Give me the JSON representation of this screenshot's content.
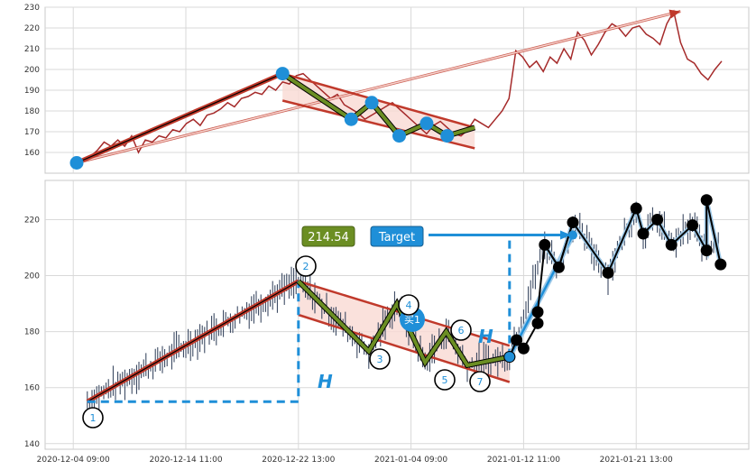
{
  "colors": {
    "price_line": "#a52a2a",
    "trend_red": "#c0392b",
    "zigzag_green": "#6b8e23",
    "marker_blue": "#1f8fd8",
    "channel_fill": "#f9d9d3",
    "candle": "#2b3a55",
    "black": "#000000",
    "grid": "#d9d9d9"
  },
  "chart_data": [
    {
      "type": "line",
      "name": "top-panel",
      "ylim": [
        150,
        230
      ],
      "yticks": [
        "160",
        "170",
        "180",
        "190",
        "200",
        "210",
        "220",
        "230"
      ],
      "xlim": [
        0,
        100
      ],
      "x": [
        0,
        1,
        2,
        3,
        4,
        5,
        6,
        7,
        8,
        9,
        10,
        11,
        12,
        13,
        14,
        15,
        16,
        17,
        18,
        19,
        20,
        21,
        22,
        23,
        24,
        25,
        26,
        27,
        28,
        29,
        30,
        31,
        32,
        33,
        34,
        35,
        36,
        37,
        38,
        39,
        40,
        41,
        42,
        43,
        44,
        45,
        46,
        47,
        48,
        49,
        50,
        51,
        52,
        53,
        54,
        55,
        56,
        57,
        58,
        59,
        60,
        61,
        62,
        63,
        64,
        65,
        66,
        67,
        68,
        69,
        70,
        71,
        72,
        73,
        74,
        75,
        76,
        77,
        78,
        79,
        80,
        81,
        82,
        83,
        84,
        85,
        86,
        87,
        88,
        89,
        90,
        91,
        92,
        93,
        94
      ],
      "values": [
        155,
        157,
        158,
        161,
        165,
        163,
        166,
        163,
        168,
        160,
        166,
        165,
        168,
        167,
        171,
        170,
        174,
        176,
        173,
        178,
        179,
        181,
        184,
        182,
        186,
        187,
        189,
        188,
        192,
        190,
        194,
        193,
        197,
        198,
        195,
        192,
        189,
        186,
        188,
        183,
        181,
        179,
        176,
        178,
        180,
        182,
        184,
        181,
        178,
        175,
        172,
        169,
        173,
        175,
        172,
        169,
        168,
        171,
        176,
        174,
        172,
        176,
        180,
        186,
        209,
        206,
        201,
        204,
        199,
        206,
        203,
        210,
        205,
        218,
        214,
        207,
        212,
        218,
        222,
        220,
        216,
        220,
        221,
        217,
        215,
        212,
        222,
        228,
        213,
        205,
        203,
        198,
        195,
        200,
        204
      ],
      "zigzag_points": [
        [
          0,
          155
        ],
        [
          30,
          198
        ],
        [
          40,
          176
        ],
        [
          43,
          184
        ],
        [
          47,
          168
        ],
        [
          51,
          174
        ],
        [
          54,
          168
        ],
        [
          58,
          172
        ]
      ],
      "trend_line": [
        [
          0,
          155
        ],
        [
          30,
          198
        ]
      ],
      "channel_upper": [
        [
          30,
          198
        ],
        [
          58,
          172
        ]
      ],
      "channel_lower": [
        [
          30,
          185
        ],
        [
          58,
          162
        ]
      ],
      "arrow_line": [
        [
          0,
          155
        ],
        [
          88,
          228
        ]
      ]
    },
    {
      "type": "scatter",
      "name": "bottom-panel",
      "ylim": [
        138,
        234
      ],
      "yticks": [
        "140",
        "160",
        "180",
        "200",
        "220"
      ],
      "xlim": [
        0,
        100
      ],
      "xticks": [
        "2020-12-04 09:00",
        "2020-12-14 11:00",
        "2020-12-22 13:00",
        "2021-01-04 09:00",
        "2021-01-12 11:00",
        "2021-01-21 13:00"
      ],
      "xtick_positions": [
        4,
        20,
        36,
        52,
        68,
        84
      ],
      "zigzag_points": [
        [
          6,
          155
        ],
        [
          36,
          198
        ],
        [
          46,
          173
        ],
        [
          50,
          190
        ],
        [
          54,
          169
        ],
        [
          57,
          180
        ],
        [
          60,
          168
        ],
        [
          66,
          171
        ]
      ],
      "pattern_numbers": [
        "1",
        "2",
        "3",
        "4",
        "5",
        "6",
        "7"
      ],
      "trend_line": [
        [
          6,
          155
        ],
        [
          36,
          198
        ]
      ],
      "channel_upper": [
        [
          36,
          198
        ],
        [
          66,
          175
        ]
      ],
      "channel_lower": [
        [
          36,
          186
        ],
        [
          66,
          162
        ]
      ],
      "h_lines": {
        "left_h": [
          [
            6,
            155
          ],
          [
            36,
            155
          ],
          [
            36,
            198
          ]
        ],
        "right_h": [
          [
            66,
            171
          ],
          [
            66,
            214.5
          ]
        ]
      },
      "target_value": "214.54",
      "target_label": "Target",
      "buy_label": "买1",
      "h_label": "H",
      "black_points": [
        [
          66,
          171
        ],
        [
          67,
          177
        ],
        [
          68,
          174
        ],
        [
          70,
          183
        ],
        [
          70,
          187
        ],
        [
          71,
          211
        ],
        [
          73,
          203
        ],
        [
          75,
          219
        ],
        [
          80,
          201
        ],
        [
          84,
          224
        ],
        [
          85,
          215
        ],
        [
          87,
          220
        ],
        [
          89,
          211
        ],
        [
          92,
          218
        ],
        [
          94,
          209
        ],
        [
          94,
          227
        ],
        [
          96,
          204
        ]
      ],
      "black_line_start": [
        [
          66,
          171
        ],
        [
          67,
          177
        ],
        [
          68,
          174
        ],
        [
          70,
          183
        ],
        [
          70,
          187
        ],
        [
          71,
          211
        ],
        [
          73,
          203
        ],
        [
          75,
          219
        ]
      ]
    }
  ]
}
